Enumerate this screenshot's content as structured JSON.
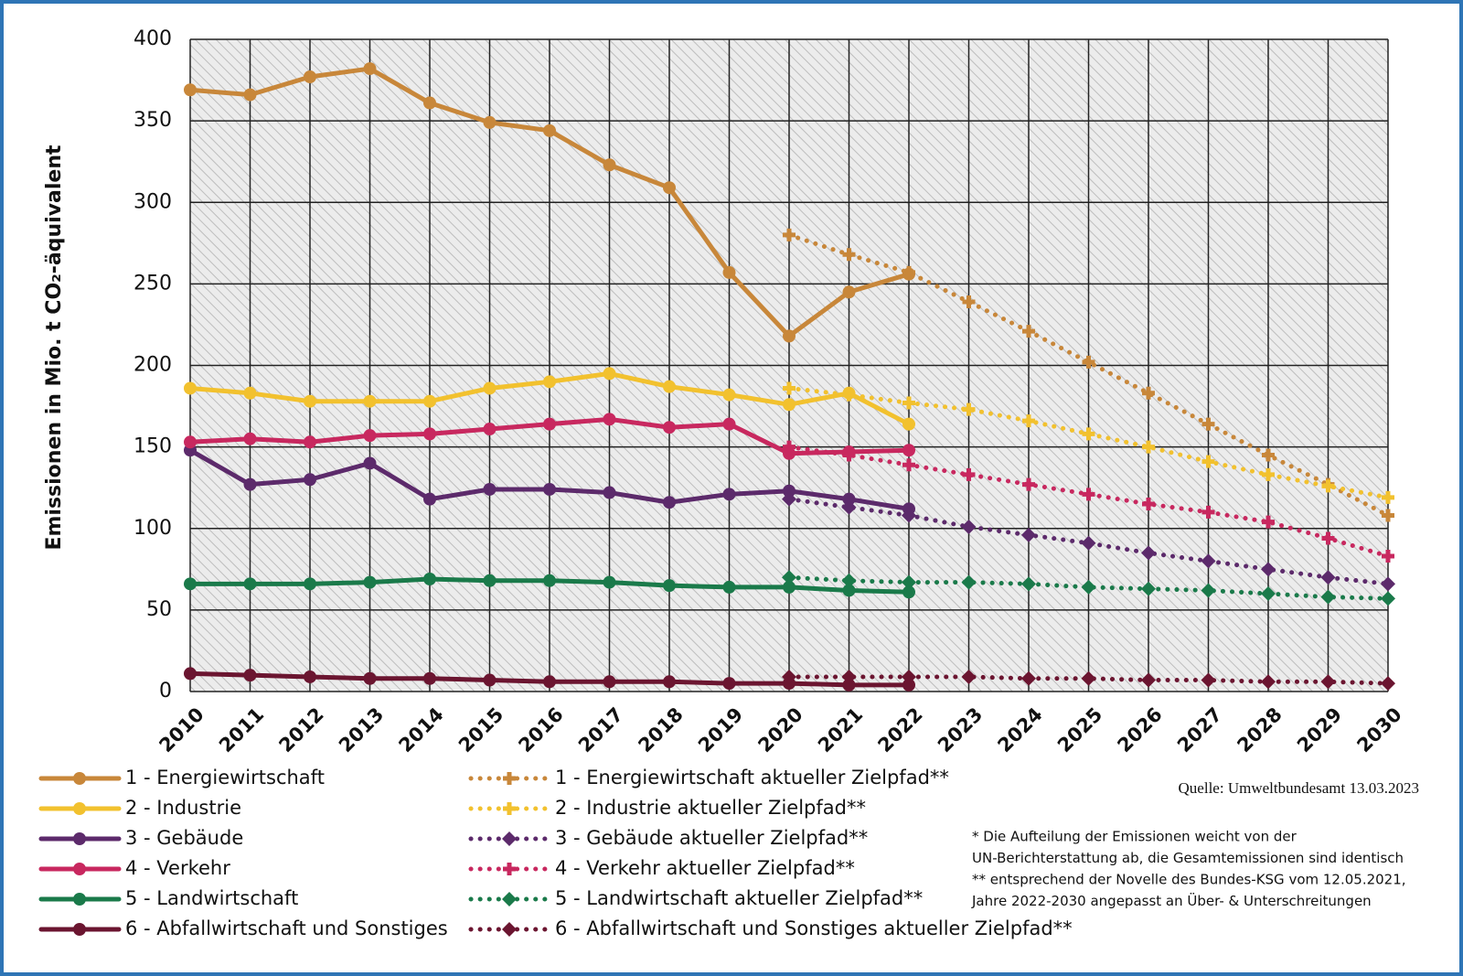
{
  "chart_data": {
    "type": "line",
    "y_label": "Emissionen in Mio. t CO₂-äquivalent",
    "source": "Quelle: Umweltbundesamt  13.03.2023",
    "notes": [
      "* Die Aufteilung der Emissionen weicht von der",
      "UN-Berichterstattung ab, die Gesamtemissionen sind identisch",
      "** entsprechend der Novelle des Bundes-KSG vom 12.05.2021,",
      "Jahre 2022-2030 angepasst an Über- & Unterschreitungen"
    ],
    "categories": [
      "2010",
      "2011",
      "2012",
      "2013",
      "2014",
      "2015",
      "2016",
      "2017",
      "2018",
      "2019",
      "2020",
      "2021",
      "2022",
      "2023",
      "2024",
      "2025",
      "2026",
      "2027",
      "2028",
      "2029",
      "2030"
    ],
    "ylim": [
      0,
      400
    ],
    "yticks": [
      0,
      50,
      100,
      150,
      200,
      250,
      300,
      350,
      400
    ],
    "grid": true,
    "series": [
      {
        "name": "1 - Energiewirtschaft",
        "color": "#c8873a",
        "marker": "circle",
        "dash": "solid",
        "values": [
          369,
          366,
          377,
          382,
          361,
          349,
          344,
          323,
          309,
          257,
          218,
          245,
          256,
          null,
          null,
          null,
          null,
          null,
          null,
          null,
          null
        ]
      },
      {
        "name": "2 - Industrie",
        "color": "#f2c12e",
        "marker": "circle",
        "dash": "solid",
        "values": [
          186,
          183,
          178,
          178,
          178,
          186,
          190,
          195,
          187,
          182,
          176,
          183,
          164,
          null,
          null,
          null,
          null,
          null,
          null,
          null,
          null
        ]
      },
      {
        "name": "3 - Gebäude",
        "color": "#5c2a6b",
        "marker": "circle",
        "dash": "solid",
        "values": [
          148,
          127,
          130,
          140,
          118,
          124,
          124,
          122,
          116,
          121,
          123,
          118,
          112,
          null,
          null,
          null,
          null,
          null,
          null,
          null,
          null
        ]
      },
      {
        "name": "4 - Verkehr",
        "color": "#c8285f",
        "marker": "circle",
        "dash": "solid",
        "values": [
          153,
          155,
          153,
          157,
          158,
          161,
          164,
          167,
          162,
          164,
          146,
          147,
          148,
          null,
          null,
          null,
          null,
          null,
          null,
          null,
          null
        ]
      },
      {
        "name": "5 - Landwirtschaft",
        "color": "#1a7a4a",
        "marker": "circle",
        "dash": "solid",
        "values": [
          66,
          66,
          66,
          67,
          69,
          68,
          68,
          67,
          65,
          64,
          64,
          62,
          61,
          null,
          null,
          null,
          null,
          null,
          null,
          null,
          null
        ]
      },
      {
        "name": "6 - Abfallwirtschaft und Sonstiges",
        "color": "#6b1530",
        "marker": "circle",
        "dash": "solid",
        "values": [
          11,
          10,
          9,
          8,
          8,
          7,
          6,
          6,
          6,
          5,
          5,
          4,
          4,
          null,
          null,
          null,
          null,
          null,
          null,
          null,
          null
        ]
      },
      {
        "name": "1 - Energiewirtschaft aktueller Zielpfad**",
        "color": "#c8873a",
        "marker": "plus",
        "dash": "dotted",
        "values": [
          null,
          null,
          null,
          null,
          null,
          null,
          null,
          null,
          null,
          null,
          280,
          268,
          257,
          239,
          221,
          202,
          183,
          164,
          145,
          127,
          108
        ]
      },
      {
        "name": "2 - Industrie aktueller Zielpfad**",
        "color": "#f2c12e",
        "marker": "plus",
        "dash": "dotted",
        "values": [
          null,
          null,
          null,
          null,
          null,
          null,
          null,
          null,
          null,
          null,
          186,
          182,
          177,
          173,
          166,
          158,
          150,
          141,
          133,
          126,
          119
        ]
      },
      {
        "name": "3 - Gebäude aktueller Zielpfad**",
        "color": "#5c2a6b",
        "marker": "diamond",
        "dash": "dotted",
        "values": [
          null,
          null,
          null,
          null,
          null,
          null,
          null,
          null,
          null,
          null,
          118,
          113,
          108,
          101,
          96,
          91,
          85,
          80,
          75,
          70,
          66
        ]
      },
      {
        "name": "4 - Verkehr aktueller Zielpfad**",
        "color": "#c8285f",
        "marker": "plus",
        "dash": "dotted",
        "values": [
          null,
          null,
          null,
          null,
          null,
          null,
          null,
          null,
          null,
          null,
          150,
          145,
          139,
          133,
          127,
          121,
          115,
          110,
          104,
          94,
          83
        ]
      },
      {
        "name": "5 - Landwirtschaft aktueller Zielpfad**",
        "color": "#1a7a4a",
        "marker": "diamond",
        "dash": "dotted",
        "values": [
          null,
          null,
          null,
          null,
          null,
          null,
          null,
          null,
          null,
          null,
          70,
          68,
          67,
          67,
          66,
          64,
          63,
          62,
          60,
          58,
          57
        ]
      },
      {
        "name": "6 - Abfallwirtschaft und Sonstiges aktueller Zielpfad**",
        "color": "#6b1530",
        "marker": "diamond",
        "dash": "dotted",
        "values": [
          null,
          null,
          null,
          null,
          null,
          null,
          null,
          null,
          null,
          null,
          9,
          9,
          9,
          9,
          8,
          8,
          7,
          7,
          6,
          6,
          5
        ]
      }
    ]
  }
}
